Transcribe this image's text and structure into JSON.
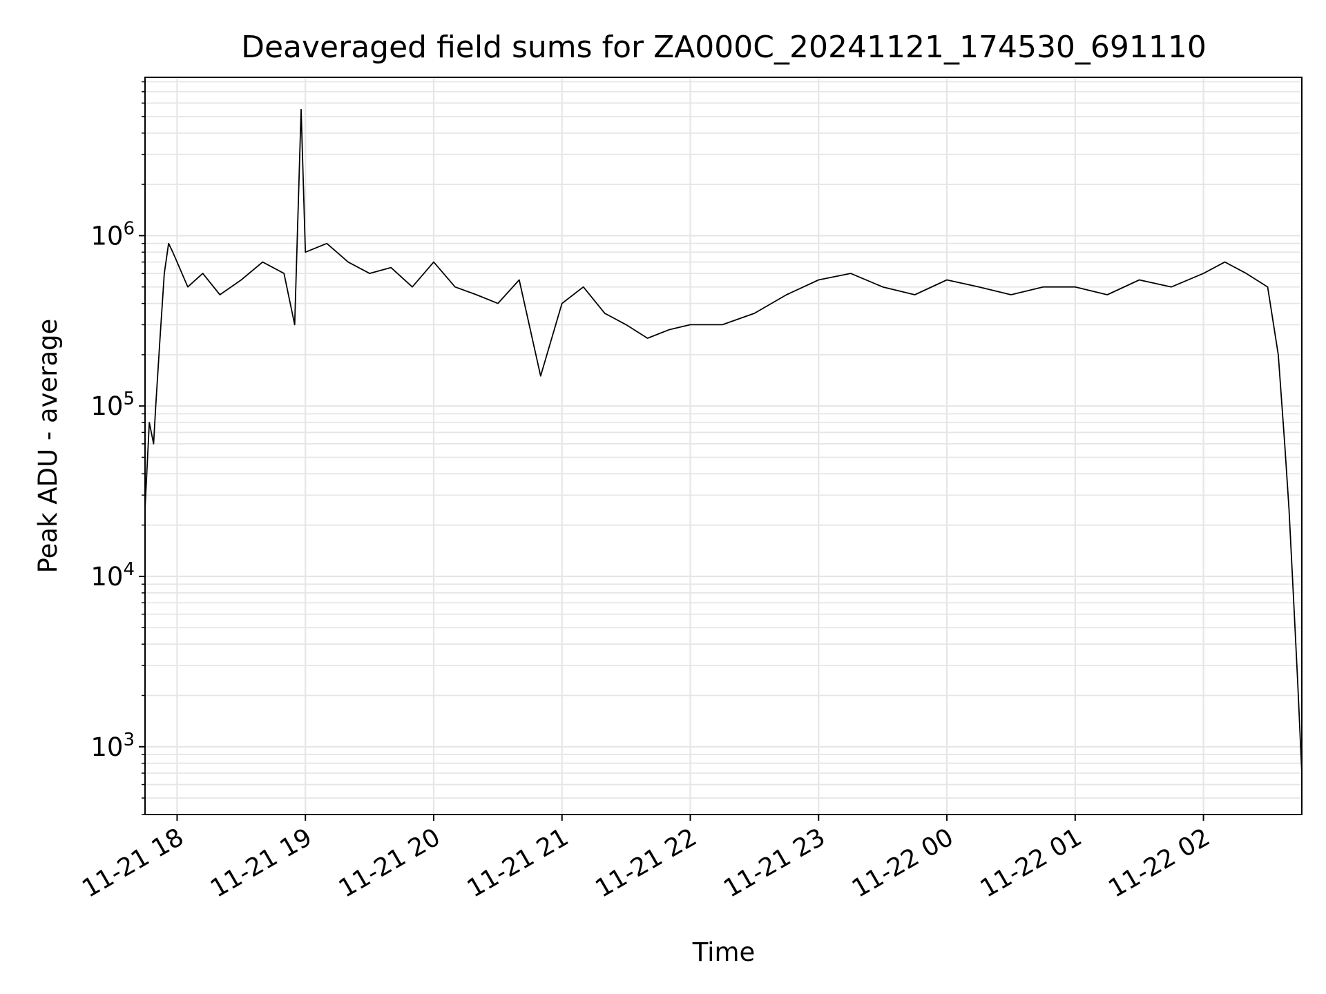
{
  "chart_data": {
    "type": "line",
    "title": "Deaveraged field sums for ZA000C_20241121_174530_691110",
    "xlabel": "Time",
    "ylabel": "Peak ADU - average",
    "y_scale": "log",
    "ylim": [
      400,
      8500000
    ],
    "xlim": [
      "2024-11-21 17:45",
      "2024-11-22 02:46"
    ],
    "grid": true,
    "x_ticks": [
      "11-21 18",
      "11-21 19",
      "11-21 20",
      "11-21 21",
      "11-21 22",
      "11-21 23",
      "11-22 00",
      "11-22 01",
      "11-22 02"
    ],
    "x_tick_values": [
      "2024-11-21 18:00",
      "2024-11-21 19:00",
      "2024-11-21 20:00",
      "2024-11-21 21:00",
      "2024-11-21 22:00",
      "2024-11-21 23:00",
      "2024-11-22 00:00",
      "2024-11-22 01:00",
      "2024-11-22 02:00"
    ],
    "y_ticks": [
      {
        "value": 1000,
        "base": "10",
        "exp": "3"
      },
      {
        "value": 10000,
        "base": "10",
        "exp": "4"
      },
      {
        "value": 100000,
        "base": "10",
        "exp": "5"
      },
      {
        "value": 1000000,
        "base": "10",
        "exp": "6"
      }
    ],
    "line_color": "#000000",
    "grid_color": "#e6e6e6",
    "series": [
      {
        "x": [
          "2024-11-21 17:45",
          "2024-11-21 17:47",
          "2024-11-21 17:49",
          "2024-11-21 17:50",
          "2024-11-21 17:52",
          "2024-11-21 17:54",
          "2024-11-21 17:56",
          "2024-11-21 17:58",
          "2024-11-21 18:00",
          "2024-11-21 18:05",
          "2024-11-21 18:12",
          "2024-11-21 18:20",
          "2024-11-21 18:30",
          "2024-11-21 18:40",
          "2024-11-21 18:50",
          "2024-11-21 18:55",
          "2024-11-21 18:58",
          "2024-11-21 19:00",
          "2024-11-21 19:10",
          "2024-11-21 19:20",
          "2024-11-21 19:30",
          "2024-11-21 19:40",
          "2024-11-21 19:50",
          "2024-11-21 20:00",
          "2024-11-21 20:10",
          "2024-11-21 20:20",
          "2024-11-21 20:30",
          "2024-11-21 20:40",
          "2024-11-21 20:50",
          "2024-11-21 21:00",
          "2024-11-21 21:10",
          "2024-11-21 21:20",
          "2024-11-21 21:30",
          "2024-11-21 21:40",
          "2024-11-21 21:50",
          "2024-11-21 22:00",
          "2024-11-21 22:15",
          "2024-11-21 22:30",
          "2024-11-21 22:45",
          "2024-11-21 23:00",
          "2024-11-21 23:15",
          "2024-11-21 23:30",
          "2024-11-21 23:45",
          "2024-11-22 00:00",
          "2024-11-22 00:15",
          "2024-11-22 00:30",
          "2024-11-22 00:45",
          "2024-11-22 01:00",
          "2024-11-22 01:15",
          "2024-11-22 01:30",
          "2024-11-22 01:45",
          "2024-11-22 02:00",
          "2024-11-22 02:10",
          "2024-11-22 02:20",
          "2024-11-22 02:30",
          "2024-11-22 02:35",
          "2024-11-22 02:38",
          "2024-11-22 02:40",
          "2024-11-22 02:42",
          "2024-11-22 02:44",
          "2024-11-22 02:46"
        ],
        "y": [
          25000,
          80000,
          60000,
          100000,
          250000,
          600000,
          900000,
          800000,
          700000,
          500000,
          600000,
          450000,
          550000,
          700000,
          600000,
          300000,
          5500000,
          800000,
          900000,
          700000,
          600000,
          650000,
          500000,
          700000,
          500000,
          450000,
          400000,
          550000,
          150000,
          400000,
          500000,
          350000,
          300000,
          250000,
          280000,
          300000,
          300000,
          350000,
          450000,
          550000,
          600000,
          500000,
          450000,
          550000,
          500000,
          450000,
          500000,
          500000,
          450000,
          550000,
          500000,
          600000,
          700000,
          600000,
          500000,
          200000,
          60000,
          25000,
          8000,
          2500,
          700
        ]
      }
    ]
  }
}
